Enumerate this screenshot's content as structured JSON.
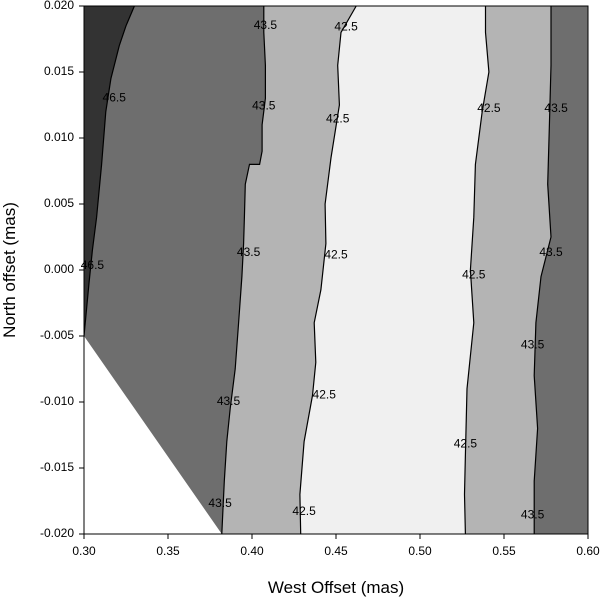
{
  "chart_data": {
    "type": "contour",
    "xlabel": "West Offset (mas)",
    "ylabel": "North offset (mas)",
    "xlim": [
      0.3,
      0.6
    ],
    "ylim": [
      -0.02,
      0.02
    ],
    "x_ticks": [
      "0.30",
      "0.35",
      "0.40",
      "0.45",
      "0.50",
      "0.55",
      "0.60"
    ],
    "x_tick_values": [
      0.3,
      0.35,
      0.4,
      0.45,
      0.5,
      0.55,
      0.6
    ],
    "y_ticks": [
      "-0.020",
      "-0.015",
      "-0.010",
      "-0.005",
      "0.000",
      "0.005",
      "0.010",
      "0.015",
      "0.020"
    ],
    "y_tick_values": [
      -0.02,
      -0.015,
      -0.01,
      -0.005,
      0.0,
      0.005,
      0.01,
      0.015,
      0.02
    ],
    "grid": false,
    "region_colors": [
      "#333333",
      "#6e6e6e",
      "#b4b4b4",
      "#f0f0f0"
    ],
    "contours": [
      {
        "level": "46.5",
        "side": "left",
        "points": [
          [
            0.3,
            -0.005
          ],
          [
            0.303,
            -0.001
          ],
          [
            0.305,
            0.0015
          ],
          [
            0.3075,
            0.004
          ],
          [
            0.3105,
            0.008
          ],
          [
            0.313,
            0.012
          ],
          [
            0.316,
            0.0145
          ],
          [
            0.321,
            0.017
          ],
          [
            0.325,
            0.0185
          ],
          [
            0.33,
            0.02
          ]
        ]
      },
      {
        "level": "43.5",
        "side": "left",
        "points": [
          [
            0.382,
            -0.02
          ],
          [
            0.3835,
            -0.016
          ],
          [
            0.385,
            -0.013
          ],
          [
            0.387,
            -0.0105
          ],
          [
            0.39,
            -0.0075
          ],
          [
            0.392,
            -0.004
          ],
          [
            0.394,
            -0.0005
          ],
          [
            0.395,
            0.002
          ],
          [
            0.3955,
            0.004
          ],
          [
            0.396,
            0.0065
          ],
          [
            0.3985,
            0.008
          ],
          [
            0.4045,
            0.008
          ],
          [
            0.406,
            0.009
          ],
          [
            0.406,
            0.011
          ],
          [
            0.408,
            0.013
          ],
          [
            0.408,
            0.0155
          ],
          [
            0.407,
            0.018
          ],
          [
            0.407,
            0.02
          ]
        ]
      },
      {
        "level": "42.5",
        "side": "left",
        "points": [
          [
            0.429,
            -0.02
          ],
          [
            0.4285,
            -0.017
          ],
          [
            0.431,
            -0.013
          ],
          [
            0.436,
            -0.0095
          ],
          [
            0.438,
            -0.007
          ],
          [
            0.437,
            -0.004
          ],
          [
            0.441,
            -0.0015
          ],
          [
            0.444,
            0.002
          ],
          [
            0.4435,
            0.005
          ],
          [
            0.447,
            0.0085
          ],
          [
            0.452,
            0.0125
          ],
          [
            0.451,
            0.0155
          ],
          [
            0.453,
            0.018
          ],
          [
            0.462,
            0.02
          ]
        ]
      },
      {
        "level": "42.5",
        "side": "right",
        "points": [
          [
            0.527,
            -0.02
          ],
          [
            0.5265,
            -0.017
          ],
          [
            0.527,
            -0.014
          ],
          [
            0.528,
            -0.009
          ],
          [
            0.532,
            -0.004
          ],
          [
            0.53,
            0.0
          ],
          [
            0.532,
            0.004
          ],
          [
            0.533,
            0.008
          ],
          [
            0.537,
            0.012
          ],
          [
            0.541,
            0.015
          ],
          [
            0.539,
            0.018
          ],
          [
            0.539,
            0.02
          ]
        ]
      },
      {
        "level": "43.5",
        "side": "right",
        "points": [
          [
            0.568,
            -0.02
          ],
          [
            0.568,
            -0.016
          ],
          [
            0.57,
            -0.012
          ],
          [
            0.568,
            -0.008
          ],
          [
            0.569,
            -0.004
          ],
          [
            0.572,
            -0.0005
          ],
          [
            0.578,
            0.0025
          ],
          [
            0.576,
            0.0065
          ],
          [
            0.577,
            0.011
          ],
          [
            0.578,
            0.0155
          ],
          [
            0.578,
            0.02
          ]
        ]
      }
    ],
    "contour_labels": [
      {
        "text": "46.5",
        "x": 0.318,
        "y": 0.013
      },
      {
        "text": "46.5",
        "x": 0.305,
        "y": 0.0003
      },
      {
        "text": "43.5",
        "x": 0.408,
        "y": 0.0185
      },
      {
        "text": "43.5",
        "x": 0.407,
        "y": 0.0124
      },
      {
        "text": "43.5",
        "x": 0.398,
        "y": 0.0013
      },
      {
        "text": "43.5",
        "x": 0.386,
        "y": -0.01
      },
      {
        "text": "43.5",
        "x": 0.381,
        "y": -0.0177
      },
      {
        "text": "42.5",
        "x": 0.456,
        "y": 0.0184
      },
      {
        "text": "42.5",
        "x": 0.451,
        "y": 0.0114
      },
      {
        "text": "42.5",
        "x": 0.45,
        "y": 0.0011
      },
      {
        "text": "42.5",
        "x": 0.443,
        "y": -0.0095
      },
      {
        "text": "42.5",
        "x": 0.431,
        "y": -0.0183
      },
      {
        "text": "42.5",
        "x": 0.541,
        "y": 0.0122
      },
      {
        "text": "42.5",
        "x": 0.532,
        "y": -0.0004
      },
      {
        "text": "42.5",
        "x": 0.527,
        "y": -0.0132
      },
      {
        "text": "43.5",
        "x": 0.581,
        "y": 0.0122
      },
      {
        "text": "43.5",
        "x": 0.578,
        "y": 0.0013
      },
      {
        "text": "43.5",
        "x": 0.567,
        "y": -0.0057
      },
      {
        "text": "43.5",
        "x": 0.567,
        "y": -0.0186
      }
    ]
  }
}
